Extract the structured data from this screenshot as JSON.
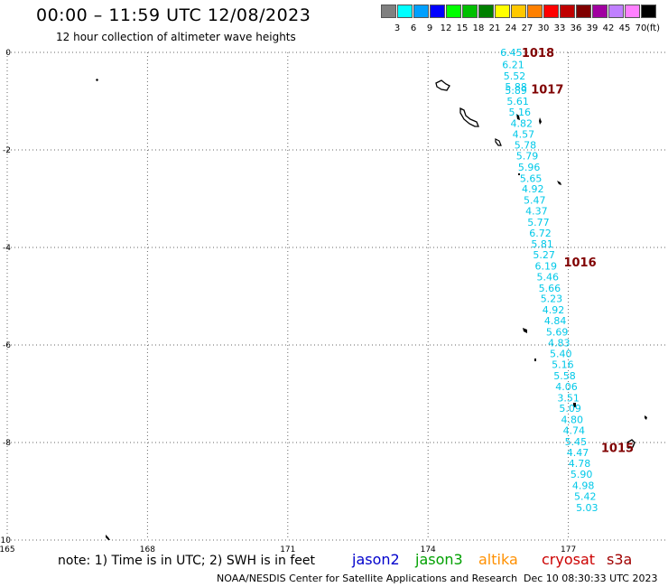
{
  "header": {
    "title": "00:00 – 11:59 UTC 12/08/2023",
    "subtitle": "12 hour collection of altimeter wave heights"
  },
  "colorbar": {
    "colors": [
      "#808080",
      "#00ffff",
      "#00a0ff",
      "#0000ff",
      "#00ff00",
      "#00c000",
      "#008000",
      "#ffff00",
      "#ffc800",
      "#ff8000",
      "#ff0000",
      "#c00000",
      "#800000",
      "#a000a0",
      "#c080ff",
      "#ff80ff",
      "#000000"
    ],
    "labels": [
      "3",
      "6",
      "9",
      "12",
      "15",
      "18",
      "21",
      "24",
      "27",
      "30",
      "33",
      "36",
      "39",
      "42",
      "45",
      "70"
    ],
    "unit": "(ft)"
  },
  "map": {
    "lon_ticks": [
      "165",
      "168",
      "171",
      "174",
      "177"
    ],
    "lat_ticks": [
      "0",
      "-2",
      "-4",
      "-6",
      "-8",
      "-10"
    ],
    "swh_color": "#00c8e8",
    "pressure_color": "#800000",
    "swh_points": [
      {
        "lat": 0.0,
        "lon": 175.78,
        "value": "6.45"
      },
      {
        "lat": -0.25,
        "lon": 175.82,
        "value": "6.21"
      },
      {
        "lat": -0.48,
        "lon": 175.85,
        "value": "5.52"
      },
      {
        "lat": -0.7,
        "lon": 175.88,
        "value": "5.88"
      },
      {
        "lat": -0.78,
        "lon": 175.88,
        "value": "5.89"
      },
      {
        "lat": -1.0,
        "lon": 175.92,
        "value": "5.61"
      },
      {
        "lat": -1.22,
        "lon": 175.96,
        "value": "5.16"
      },
      {
        "lat": -1.45,
        "lon": 176.0,
        "value": "4.82"
      },
      {
        "lat": -1.68,
        "lon": 176.04,
        "value": "4.57"
      },
      {
        "lat": -1.9,
        "lon": 176.08,
        "value": "5.78"
      },
      {
        "lat": -2.12,
        "lon": 176.12,
        "value": "5.79"
      },
      {
        "lat": -2.35,
        "lon": 176.16,
        "value": "5.96"
      },
      {
        "lat": -2.58,
        "lon": 176.2,
        "value": "5.65"
      },
      {
        "lat": -2.8,
        "lon": 176.24,
        "value": "4.92"
      },
      {
        "lat": -3.03,
        "lon": 176.28,
        "value": "5.47"
      },
      {
        "lat": -3.25,
        "lon": 176.32,
        "value": "4.37"
      },
      {
        "lat": -3.48,
        "lon": 176.36,
        "value": "5.77"
      },
      {
        "lat": -3.7,
        "lon": 176.4,
        "value": "6.72"
      },
      {
        "lat": -3.93,
        "lon": 176.44,
        "value": "5.81"
      },
      {
        "lat": -4.15,
        "lon": 176.48,
        "value": "5.27"
      },
      {
        "lat": -4.38,
        "lon": 176.52,
        "value": "6.19"
      },
      {
        "lat": -4.6,
        "lon": 176.56,
        "value": "5.46"
      },
      {
        "lat": -4.83,
        "lon": 176.6,
        "value": "5.66"
      },
      {
        "lat": -5.05,
        "lon": 176.64,
        "value": "5.23"
      },
      {
        "lat": -5.28,
        "lon": 176.68,
        "value": "4.92"
      },
      {
        "lat": -5.5,
        "lon": 176.72,
        "value": "4.84"
      },
      {
        "lat": -5.73,
        "lon": 176.76,
        "value": "5.69"
      },
      {
        "lat": -5.95,
        "lon": 176.8,
        "value": "4.83"
      },
      {
        "lat": -6.18,
        "lon": 176.84,
        "value": "5.40"
      },
      {
        "lat": -6.4,
        "lon": 176.88,
        "value": "5.16"
      },
      {
        "lat": -6.63,
        "lon": 176.92,
        "value": "5.58"
      },
      {
        "lat": -6.85,
        "lon": 176.96,
        "value": "4.06"
      },
      {
        "lat": -7.08,
        "lon": 177.0,
        "value": "3.51"
      },
      {
        "lat": -7.3,
        "lon": 177.04,
        "value": "5.09"
      },
      {
        "lat": -7.53,
        "lon": 177.08,
        "value": "4.80"
      },
      {
        "lat": -7.75,
        "lon": 177.12,
        "value": "4.74"
      },
      {
        "lat": -7.98,
        "lon": 177.16,
        "value": "5.45"
      },
      {
        "lat": -8.2,
        "lon": 177.2,
        "value": "4.47"
      },
      {
        "lat": -8.43,
        "lon": 177.24,
        "value": "4.78"
      },
      {
        "lat": -8.65,
        "lon": 177.28,
        "value": "5.90"
      },
      {
        "lat": -8.88,
        "lon": 177.32,
        "value": "4.98"
      },
      {
        "lat": -9.1,
        "lon": 177.36,
        "value": "5.42"
      },
      {
        "lat": -9.33,
        "lon": 177.4,
        "value": "5.03"
      }
    ],
    "pressure_labels": [
      {
        "lat": 0.0,
        "lon": 176.35,
        "value": "1018"
      },
      {
        "lat": -0.75,
        "lon": 176.55,
        "value": "1017"
      },
      {
        "lat": -4.3,
        "lon": 177.25,
        "value": "1016"
      },
      {
        "lat": -8.1,
        "lon": 178.05,
        "value": "1015"
      }
    ]
  },
  "footer": {
    "note": "note: 1) Time is in UTC; 2) SWH is in feet",
    "satellites": [
      {
        "name": "jason2",
        "color": "#0000cc"
      },
      {
        "name": "jason3",
        "color": "#00a000"
      },
      {
        "name": "altika",
        "color": "#ff9000"
      },
      {
        "name": "cryosat",
        "color": "#cc0000"
      },
      {
        "name": "s3a",
        "color": "#a00000"
      }
    ],
    "credit": "NOAA/NESDIS Center for Satellite Applications and Research",
    "timestamp": "Dec 10 08:30:33 UTC 2023"
  }
}
